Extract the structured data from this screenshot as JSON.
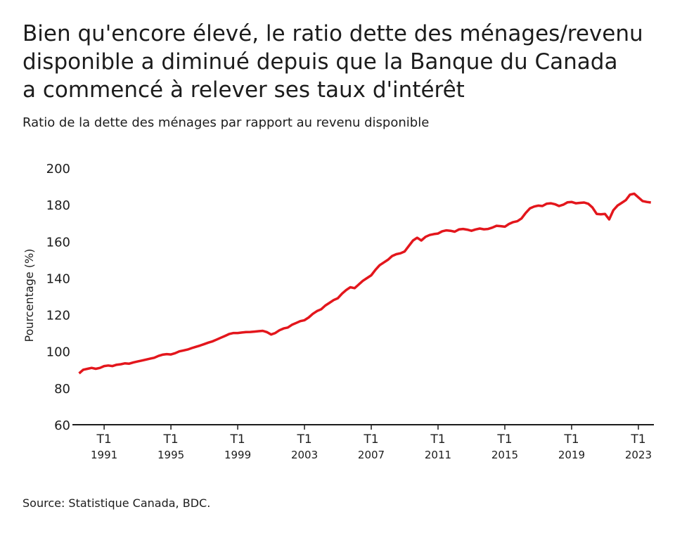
{
  "chart_data": {
    "type": "line",
    "title": [
      "Bien qu'encore élevé, le ratio dette des ménages/revenu",
      "disponible a diminué depuis que la Banque du Canada",
      "a commencé à relever ses taux d'intérêt"
    ],
    "subtitle": "Ratio de la dette des ménages par rapport au revenu disponible",
    "y_label": "Pourcentage (%)",
    "source": "Source: Statistique Canada, BDC.",
    "x": [
      1989.5,
      1989.75,
      1990,
      1990.25,
      1990.5,
      1990.75,
      1991,
      1991.25,
      1991.5,
      1991.75,
      1992,
      1992.25,
      1992.5,
      1992.75,
      1993,
      1993.25,
      1993.5,
      1993.75,
      1994,
      1994.25,
      1994.5,
      1994.75,
      1995,
      1995.25,
      1995.5,
      1995.75,
      1996,
      1996.25,
      1996.5,
      1996.75,
      1997,
      1997.25,
      1997.5,
      1997.75,
      1998,
      1998.25,
      1998.5,
      1998.75,
      1999,
      1999.25,
      1999.5,
      1999.75,
      2000,
      2000.25,
      2000.5,
      2000.75,
      2001,
      2001.25,
      2001.5,
      2001.75,
      2002,
      2002.25,
      2002.5,
      2002.75,
      2003,
      2003.25,
      2003.5,
      2003.75,
      2004,
      2004.25,
      2004.5,
      2004.75,
      2005,
      2005.25,
      2005.5,
      2005.75,
      2006,
      2006.25,
      2006.5,
      2006.75,
      2007,
      2007.25,
      2007.5,
      2007.75,
      2008,
      2008.25,
      2008.5,
      2008.75,
      2009,
      2009.25,
      2009.5,
      2009.75,
      2010,
      2010.25,
      2010.5,
      2010.75,
      2011,
      2011.25,
      2011.5,
      2011.75,
      2012,
      2012.25,
      2012.5,
      2012.75,
      2013,
      2013.25,
      2013.5,
      2013.75,
      2014,
      2014.25,
      2014.5,
      2014.75,
      2015,
      2015.25,
      2015.5,
      2015.75,
      2016,
      2016.25,
      2016.5,
      2016.75,
      2017,
      2017.25,
      2017.5,
      2017.75,
      2018,
      2018.25,
      2018.5,
      2018.75,
      2019,
      2019.25,
      2019.5,
      2019.75,
      2020,
      2020.25,
      2020.5,
      2020.75,
      2021,
      2021.25,
      2021.5,
      2021.75,
      2022,
      2022.25,
      2022.5,
      2022.75,
      2023,
      2023.25,
      2023.5,
      2023.75
    ],
    "series": [
      {
        "name": "Ratio",
        "color": "#e3161c",
        "values": [
          88,
          90,
          90.5,
          91,
          90.5,
          91,
          92,
          92.3,
          92,
          92.7,
          93,
          93.5,
          93.3,
          94,
          94.5,
          95,
          95.5,
          96,
          96.5,
          97.5,
          98.2,
          98.5,
          98.3,
          99,
          100,
          100.5,
          101,
          101.8,
          102.5,
          103.2,
          104,
          104.8,
          105.5,
          106.5,
          107.5,
          108.5,
          109.5,
          110,
          110,
          110.3,
          110.5,
          110.6,
          110.8,
          111,
          111.2,
          110.5,
          109.2,
          110,
          111.5,
          112.5,
          113,
          114.5,
          115.5,
          116.5,
          117,
          118.5,
          120.5,
          122,
          123,
          125,
          126.5,
          128,
          129,
          131.5,
          133.5,
          135,
          134.5,
          136.5,
          138.5,
          140,
          141.5,
          144.5,
          147,
          148.5,
          150,
          152,
          153,
          153.5,
          154.5,
          157.5,
          160.5,
          162,
          160.5,
          162.5,
          163.5,
          164,
          164.3,
          165.5,
          166,
          165.8,
          165.3,
          166.5,
          166.8,
          166.4,
          165.8,
          166.5,
          167,
          166.6,
          166.8,
          167.5,
          168.5,
          168.3,
          168,
          169.5,
          170.5,
          171,
          172.5,
          175.5,
          178,
          179,
          179.5,
          179.3,
          180.5,
          180.8,
          180.3,
          179.3,
          180,
          181.3,
          181.5,
          180.8,
          181,
          181.2,
          180.5,
          178.5,
          175,
          174.8,
          175,
          172,
          177,
          179.5,
          181,
          182.5,
          185.5,
          186,
          184,
          182,
          181.5,
          181.2
        ]
      }
    ],
    "xlim": [
      1989.1,
      2023.93
    ],
    "xticks": [
      {
        "value": 1991,
        "label": "T1 1991"
      },
      {
        "value": 1995,
        "label": "T1 1995"
      },
      {
        "value": 1999,
        "label": "T1 1999"
      },
      {
        "value": 2003,
        "label": "T1 2003"
      },
      {
        "value": 2007,
        "label": "T1 2007"
      },
      {
        "value": 2011,
        "label": "T1 2011"
      },
      {
        "value": 2015,
        "label": "T1 2015"
      },
      {
        "value": 2019,
        "label": "T1 2019"
      },
      {
        "value": 2023,
        "label": "T1 2023"
      }
    ],
    "ylim": [
      60,
      200
    ],
    "yticks": [
      60,
      80,
      100,
      120,
      140,
      160,
      180,
      200
    ],
    "grid": false
  }
}
